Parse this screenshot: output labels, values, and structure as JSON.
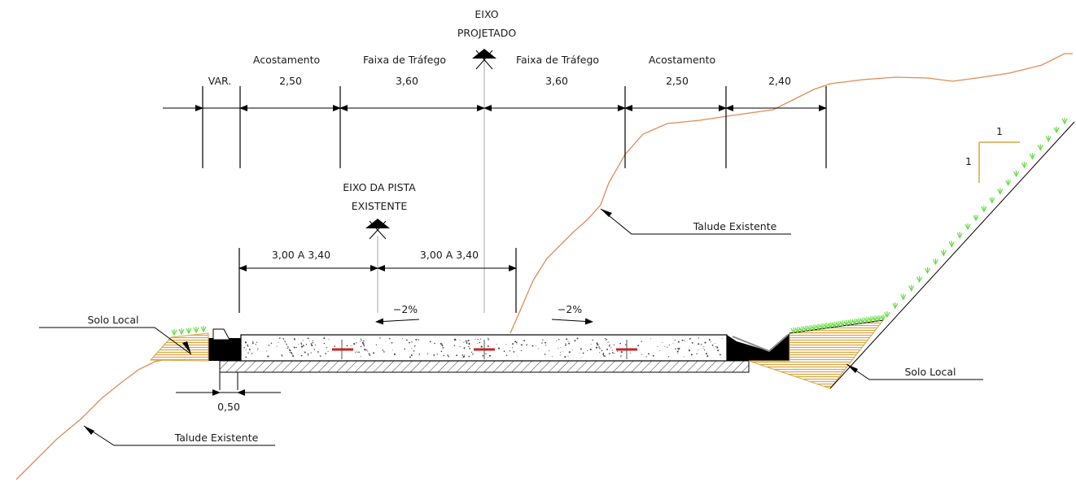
{
  "labels": {
    "eixo_projetado_1": "EIXO",
    "eixo_projetado_2": "PROJETADO",
    "eixo_pista_1": "EIXO DA PISTA",
    "eixo_pista_2": "EXISTENTE",
    "acostamento_left": "Acostamento",
    "faixa_left": "Faixa de Tráfego",
    "faixa_right": "Faixa de Tráfego",
    "acostamento_right": "Acostamento",
    "dim_var": "VAR.",
    "dim_acost_left": "2,50",
    "dim_faixa_left": "3,60",
    "dim_faixa_right": "3,60",
    "dim_acost_right": "2,50",
    "dim_extra_right": "2,40",
    "dim_pista_left": "3,00  A  3,40",
    "dim_pista_right": "3,00  A  3,40",
    "slope_left": "−2%",
    "slope_right": "−2%",
    "solo_local_left": "Solo  Local",
    "solo_local_right": "Solo  Local",
    "talude_right": "Talude  Existente",
    "talude_left": "Talude  Existente",
    "dim_bottom": "0,50",
    "ratio_h": "1",
    "ratio_v": "1"
  },
  "colors": {
    "terrain": "#e08a55",
    "fill_soil": "#d9a441",
    "grass": "#66dd44",
    "axis": "#aaaaaa",
    "marker": "#cc2222"
  }
}
